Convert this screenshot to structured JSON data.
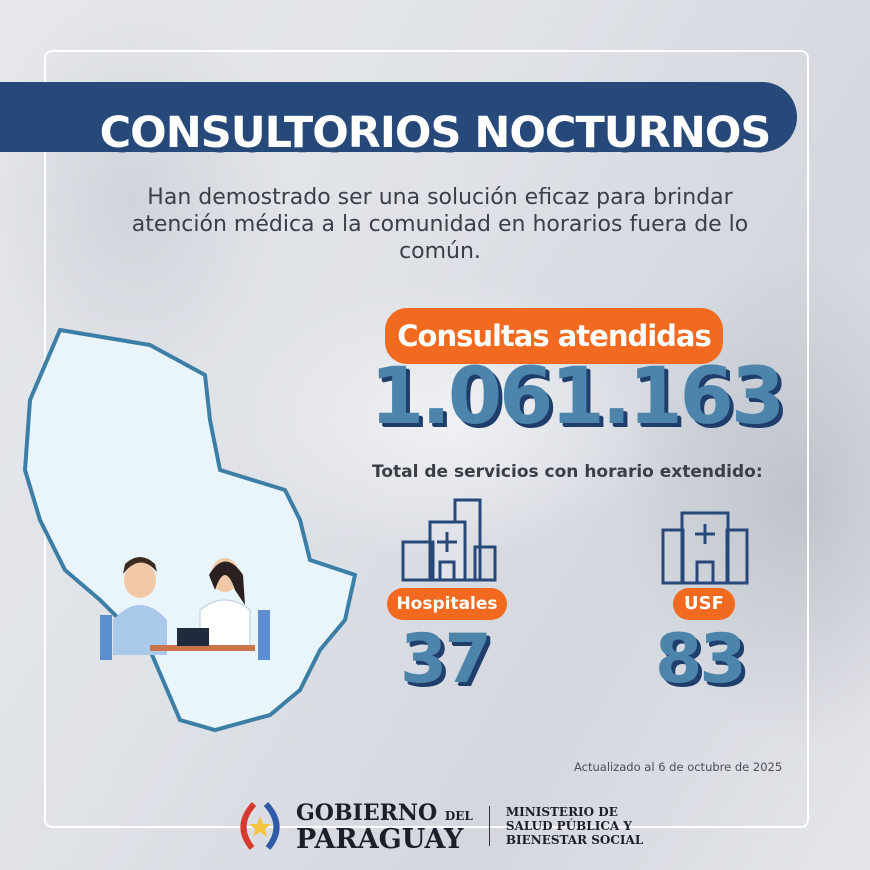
{
  "title": "CONSULTORIOS NOCTURNOS",
  "subtitle": "Han demostrado ser una solución eficaz para brindar atención médica a la comunidad en horarios fuera de lo común.",
  "consultas": {
    "label": "Consultas atendidas",
    "value": "1.061.163"
  },
  "services_label": "Total de servicios con horario extendido:",
  "services": [
    {
      "label": "Hospitales",
      "value": "37",
      "icon": "hospital-building-icon"
    },
    {
      "label": "USF",
      "value": "83",
      "icon": "clinic-building-icon"
    }
  ],
  "updated": "Actualizado al 6 de octubre de 2025",
  "footer": {
    "gov_line1": "GOBIERNO",
    "gov_del": "DEL",
    "gov_line2": "PARAGUAY",
    "ministry": [
      "MINISTERIO DE",
      "SALUD PÚBLICA Y",
      "BIENESTAR SOCIAL"
    ]
  },
  "colors": {
    "navy": "#27497a",
    "orange": "#f26a1f",
    "number_blue": "#4c84ab",
    "map_fill": "#e9f4fb",
    "map_edge": "#3d7ea6"
  }
}
